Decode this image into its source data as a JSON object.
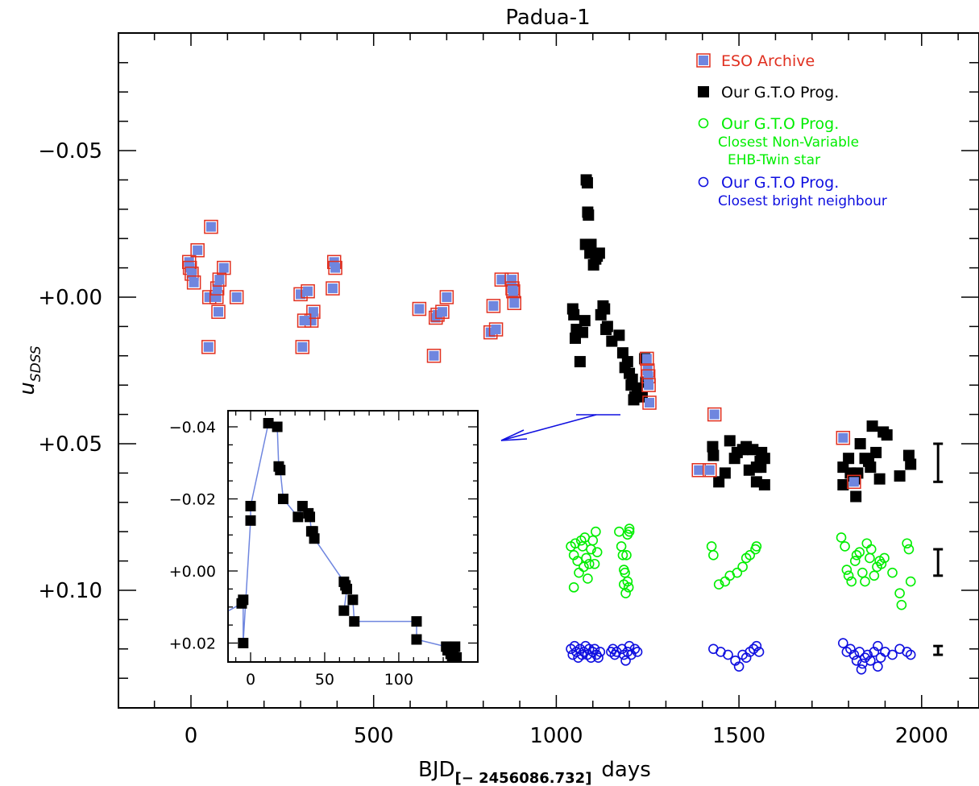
{
  "chart_data": {
    "title": "Padua-1",
    "type": "scatter",
    "xlabel_main": "BJD",
    "xlabel_sub": "[− 2456086.732]",
    "xlabel_units": "days",
    "ylabel_main": "u",
    "ylabel_sub": "SDSS",
    "xlim": [
      -200,
      2100
    ],
    "ylim": [
      -0.09,
      0.14
    ],
    "y_inverted": true,
    "xticks": [
      0,
      500,
      1000,
      1500,
      2000
    ],
    "xtick_labels": [
      "0",
      "500",
      "1000",
      "1500",
      "2000"
    ],
    "yticks": [
      -0.05,
      0.0,
      0.05,
      0.1
    ],
    "ytick_labels": [
      "−0.05",
      "+0.00",
      "+0.05",
      "+0.10"
    ],
    "legend_position": "top-right",
    "legend": [
      {
        "marker": "square-framed",
        "color": "#6f86df",
        "edge": "#e03020",
        "lines": [
          "ESO Archive"
        ],
        "text_color": "#e03020"
      },
      {
        "marker": "square",
        "color": "#000000",
        "lines": [
          "Our G.T.O Prog."
        ],
        "text_color": "#000000"
      },
      {
        "marker": "circle",
        "color": "#00ee00",
        "lines": [
          "Our G.T.O Prog.",
          "Closest Non-Variable",
          "EHB-Twin star"
        ],
        "text_color": "#00ee00"
      },
      {
        "marker": "circle",
        "color": "#1010e0",
        "lines": [
          "Our G.T.O Prog.",
          "Closest bright neighbour"
        ],
        "text_color": "#1010e0"
      }
    ],
    "series": [
      {
        "name": "ESO Archive",
        "marker": "square-framed",
        "points": [
          [
            -5,
            -0.012
          ],
          [
            -3,
            -0.01
          ],
          [
            2,
            -0.008
          ],
          [
            8,
            -0.005
          ],
          [
            18,
            -0.016
          ],
          [
            55,
            -0.024
          ],
          [
            50,
            0.0
          ],
          [
            48,
            0.017
          ],
          [
            70,
            0.0
          ],
          [
            72,
            -0.003
          ],
          [
            78,
            -0.006
          ],
          [
            75,
            0.005
          ],
          [
            90,
            -0.01
          ],
          [
            125,
            0.0
          ],
          [
            300,
            -0.001
          ],
          [
            305,
            0.017
          ],
          [
            320,
            -0.002
          ],
          [
            330,
            0.008
          ],
          [
            335,
            0.005
          ],
          [
            310,
            0.008
          ],
          [
            392,
            -0.012
          ],
          [
            395,
            -0.01
          ],
          [
            388,
            -0.003
          ],
          [
            625,
            0.004
          ],
          [
            665,
            0.02
          ],
          [
            670,
            0.007
          ],
          [
            675,
            0.006
          ],
          [
            688,
            0.005
          ],
          [
            700,
            0.0
          ],
          [
            820,
            0.012
          ],
          [
            828,
            0.003
          ],
          [
            835,
            0.011
          ],
          [
            850,
            -0.006
          ],
          [
            878,
            -0.006
          ],
          [
            880,
            -0.003
          ],
          [
            882,
            -0.002
          ],
          [
            885,
            0.002
          ],
          [
            1248,
            0.021
          ],
          [
            1250,
            0.025
          ],
          [
            1252,
            0.027
          ],
          [
            1253,
            0.03
          ],
          [
            1255,
            0.036
          ],
          [
            1390,
            0.059
          ],
          [
            1420,
            0.059
          ],
          [
            1433,
            0.04
          ],
          [
            1785,
            0.048
          ],
          [
            1815,
            0.063
          ]
        ]
      },
      {
        "name": "Our G.T.O Prog.",
        "marker": "square",
        "points": [
          [
            1045,
            0.004
          ],
          [
            1048,
            0.006
          ],
          [
            1052,
            0.014
          ],
          [
            1055,
            0.011
          ],
          [
            1065,
            0.022
          ],
          [
            1072,
            0.012
          ],
          [
            1078,
            0.008
          ],
          [
            1080,
            -0.018
          ],
          [
            1082,
            -0.04
          ],
          [
            1085,
            -0.039
          ],
          [
            1086,
            -0.029
          ],
          [
            1088,
            -0.028
          ],
          [
            1092,
            -0.015
          ],
          [
            1095,
            -0.018
          ],
          [
            1102,
            -0.011
          ],
          [
            1108,
            -0.013
          ],
          [
            1112,
            -0.014
          ],
          [
            1118,
            -0.015
          ],
          [
            1122,
            0.006
          ],
          [
            1128,
            0.003
          ],
          [
            1132,
            0.004
          ],
          [
            1136,
            0.011
          ],
          [
            1140,
            0.01
          ],
          [
            1152,
            0.015
          ],
          [
            1172,
            0.013
          ],
          [
            1182,
            0.019
          ],
          [
            1188,
            0.024
          ],
          [
            1195,
            0.022
          ],
          [
            1200,
            0.026
          ],
          [
            1205,
            0.03
          ],
          [
            1208,
            0.028
          ],
          [
            1212,
            0.035
          ],
          [
            1215,
            0.034
          ],
          [
            1222,
            0.031
          ],
          [
            1235,
            0.034
          ],
          [
            1242,
            0.021
          ],
          [
            1245,
            0.029
          ],
          [
            1428,
            0.051
          ],
          [
            1430,
            0.054
          ],
          [
            1445,
            0.063
          ],
          [
            1462,
            0.06
          ],
          [
            1475,
            0.049
          ],
          [
            1488,
            0.055
          ],
          [
            1495,
            0.053
          ],
          [
            1510,
            0.052
          ],
          [
            1520,
            0.051
          ],
          [
            1528,
            0.059
          ],
          [
            1538,
            0.052
          ],
          [
            1548,
            0.058
          ],
          [
            1560,
            0.058
          ],
          [
            1562,
            0.053
          ],
          [
            1570,
            0.055
          ],
          [
            1558,
            0.056
          ],
          [
            1548,
            0.063
          ],
          [
            1570,
            0.064
          ],
          [
            1785,
            0.058
          ],
          [
            1800,
            0.055
          ],
          [
            1805,
            0.06
          ],
          [
            1815,
            0.061
          ],
          [
            1818,
            0.062
          ],
          [
            1825,
            0.06
          ],
          [
            1832,
            0.05
          ],
          [
            1845,
            0.055
          ],
          [
            1855,
            0.056
          ],
          [
            1860,
            0.058
          ],
          [
            1865,
            0.044
          ],
          [
            1875,
            0.053
          ],
          [
            1885,
            0.062
          ],
          [
            1895,
            0.046
          ],
          [
            1905,
            0.047
          ],
          [
            1940,
            0.061
          ],
          [
            1965,
            0.054
          ],
          [
            1970,
            0.057
          ],
          [
            1785,
            0.064
          ],
          [
            1820,
            0.068
          ]
        ]
      },
      {
        "name": "Our G.T.O Prog. — Closest Non-Variable EHB-Twin star",
        "marker": "circle",
        "points": [
          [
            1040,
            0.085
          ],
          [
            1048,
            0.088
          ],
          [
            1052,
            0.084
          ],
          [
            1058,
            0.09
          ],
          [
            1062,
            0.094
          ],
          [
            1068,
            0.083
          ],
          [
            1072,
            0.085
          ],
          [
            1075,
            0.092
          ],
          [
            1078,
            0.082
          ],
          [
            1082,
            0.089
          ],
          [
            1086,
            0.096
          ],
          [
            1090,
            0.091
          ],
          [
            1095,
            0.086
          ],
          [
            1100,
            0.083
          ],
          [
            1105,
            0.091
          ],
          [
            1108,
            0.08
          ],
          [
            1048,
            0.099
          ],
          [
            1112,
            0.087
          ],
          [
            1172,
            0.08
          ],
          [
            1178,
            0.085
          ],
          [
            1182,
            0.088
          ],
          [
            1185,
            0.093
          ],
          [
            1188,
            0.094
          ],
          [
            1192,
            0.088
          ],
          [
            1195,
            0.097
          ],
          [
            1198,
            0.099
          ],
          [
            1200,
            0.08
          ],
          [
            1195,
            0.081
          ],
          [
            1185,
            0.098
          ],
          [
            1190,
            0.101
          ],
          [
            1200,
            0.079
          ],
          [
            1425,
            0.085
          ],
          [
            1430,
            0.088
          ],
          [
            1445,
            0.098
          ],
          [
            1462,
            0.097
          ],
          [
            1475,
            0.095
          ],
          [
            1495,
            0.094
          ],
          [
            1510,
            0.092
          ],
          [
            1520,
            0.089
          ],
          [
            1530,
            0.088
          ],
          [
            1545,
            0.086
          ],
          [
            1548,
            0.085
          ],
          [
            1780,
            0.082
          ],
          [
            1790,
            0.085
          ],
          [
            1795,
            0.093
          ],
          [
            1800,
            0.095
          ],
          [
            1808,
            0.097
          ],
          [
            1818,
            0.09
          ],
          [
            1822,
            0.088
          ],
          [
            1830,
            0.087
          ],
          [
            1838,
            0.094
          ],
          [
            1845,
            0.097
          ],
          [
            1850,
            0.084
          ],
          [
            1858,
            0.089
          ],
          [
            1862,
            0.086
          ],
          [
            1870,
            0.095
          ],
          [
            1878,
            0.092
          ],
          [
            1885,
            0.09
          ],
          [
            1890,
            0.091
          ],
          [
            1898,
            0.089
          ],
          [
            1920,
            0.094
          ],
          [
            1940,
            0.101
          ],
          [
            1945,
            0.105
          ],
          [
            1960,
            0.084
          ],
          [
            1965,
            0.086
          ],
          [
            1970,
            0.097
          ]
        ]
      },
      {
        "name": "Our G.T.O Prog. — Closest bright neighbour",
        "marker": "circle",
        "points": [
          [
            1040,
            0.12
          ],
          [
            1045,
            0.122
          ],
          [
            1050,
            0.119
          ],
          [
            1055,
            0.121
          ],
          [
            1060,
            0.123
          ],
          [
            1065,
            0.12
          ],
          [
            1070,
            0.122
          ],
          [
            1075,
            0.121
          ],
          [
            1080,
            0.119
          ],
          [
            1085,
            0.122
          ],
          [
            1090,
            0.12
          ],
          [
            1095,
            0.123
          ],
          [
            1100,
            0.121
          ],
          [
            1105,
            0.12
          ],
          [
            1110,
            0.122
          ],
          [
            1115,
            0.123
          ],
          [
            1120,
            0.121
          ],
          [
            1150,
            0.121
          ],
          [
            1155,
            0.12
          ],
          [
            1160,
            0.122
          ],
          [
            1165,
            0.121
          ],
          [
            1180,
            0.12
          ],
          [
            1185,
            0.122
          ],
          [
            1190,
            0.124
          ],
          [
            1195,
            0.121
          ],
          [
            1200,
            0.119
          ],
          [
            1205,
            0.122
          ],
          [
            1215,
            0.12
          ],
          [
            1222,
            0.121
          ],
          [
            1430,
            0.12
          ],
          [
            1450,
            0.121
          ],
          [
            1470,
            0.122
          ],
          [
            1490,
            0.124
          ],
          [
            1500,
            0.126
          ],
          [
            1510,
            0.122
          ],
          [
            1520,
            0.123
          ],
          [
            1530,
            0.121
          ],
          [
            1540,
            0.12
          ],
          [
            1548,
            0.119
          ],
          [
            1555,
            0.121
          ],
          [
            1785,
            0.118
          ],
          [
            1795,
            0.121
          ],
          [
            1805,
            0.12
          ],
          [
            1815,
            0.122
          ],
          [
            1822,
            0.124
          ],
          [
            1830,
            0.121
          ],
          [
            1838,
            0.125
          ],
          [
            1845,
            0.123
          ],
          [
            1852,
            0.122
          ],
          [
            1860,
            0.124
          ],
          [
            1870,
            0.121
          ],
          [
            1880,
            0.119
          ],
          [
            1888,
            0.123
          ],
          [
            1900,
            0.121
          ],
          [
            1920,
            0.122
          ],
          [
            1940,
            0.12
          ],
          [
            1960,
            0.121
          ],
          [
            1970,
            0.122
          ],
          [
            1880,
            0.126
          ],
          [
            1835,
            0.127
          ]
        ]
      }
    ],
    "error_bars": [
      {
        "x": 2045,
        "y_low": 0.05,
        "y_high": 0.063
      },
      {
        "x": 2045,
        "y_low": 0.086,
        "y_high": 0.095
      },
      {
        "x": 2045,
        "y_low": 0.119,
        "y_high": 0.122
      }
    ],
    "inset": {
      "type": "line+scatter",
      "xlim": [
        -15,
        140
      ],
      "ylim": [
        -0.045,
        0.026
      ],
      "y_inverted": true,
      "xticks": [
        0,
        50,
        100
      ],
      "xtick_labels": [
        "0",
        "50",
        "100"
      ],
      "yticks": [
        -0.04,
        -0.02,
        0.0,
        0.02
      ],
      "ytick_labels": [
        "−0.04",
        "−0.02",
        "+0.00",
        "+0.02"
      ],
      "line_color": "#6f86df",
      "points": [
        [
          -6,
          0.009
        ],
        [
          -5,
          0.008
        ],
        [
          -5,
          0.02
        ],
        [
          0,
          -0.014
        ],
        [
          0,
          -0.018
        ],
        [
          12,
          -0.041
        ],
        [
          18,
          -0.04
        ],
        [
          19,
          -0.029
        ],
        [
          20,
          -0.028
        ],
        [
          22,
          -0.02
        ],
        [
          32,
          -0.015
        ],
        [
          35,
          -0.018
        ],
        [
          39,
          -0.016
        ],
        [
          40,
          -0.015
        ],
        [
          41,
          -0.011
        ],
        [
          42,
          -0.011
        ],
        [
          43,
          -0.009
        ],
        [
          63,
          0.003
        ],
        [
          64,
          0.004
        ],
        [
          65,
          0.005
        ],
        [
          63,
          0.011
        ],
        [
          69,
          0.008
        ],
        [
          70,
          0.014
        ],
        [
          112,
          0.014
        ],
        [
          112,
          0.019
        ],
        [
          132,
          0.021
        ],
        [
          133,
          0.022
        ],
        [
          135,
          0.023
        ],
        [
          136,
          0.024
        ],
        [
          137,
          0.022
        ],
        [
          138,
          0.021
        ],
        [
          139,
          0.024
        ]
      ]
    },
    "inset_pointer_color": "#1010e0"
  }
}
